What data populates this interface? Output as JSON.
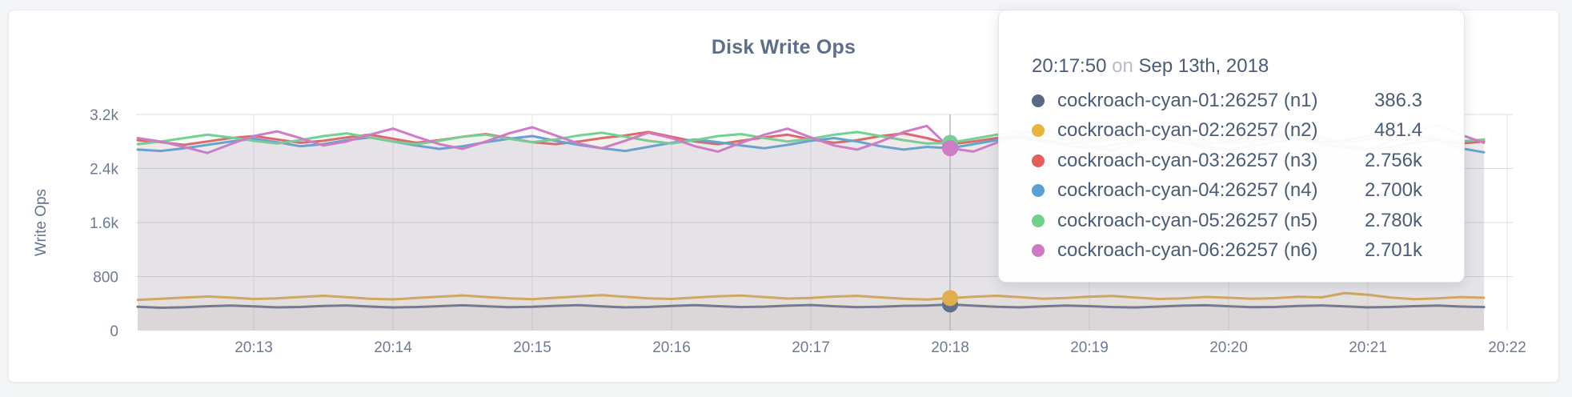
{
  "page": {
    "background": "#f4f5f6"
  },
  "card": {
    "background": "#ffffff",
    "border_color": "#e7e9ec"
  },
  "chart_data": {
    "type": "line",
    "title": "Disk Write Ops",
    "xlabel": "",
    "ylabel": "Write Ops",
    "grid": true,
    "legend_position": "tooltip",
    "y_range": [
      0,
      3200
    ],
    "y_ticks": [
      {
        "value": 0,
        "label": "0"
      },
      {
        "value": 800,
        "label": "800"
      },
      {
        "value": 1600,
        "label": "1.6k"
      },
      {
        "value": 2400,
        "label": "2.4k"
      },
      {
        "value": 3200,
        "label": "3.2k"
      }
    ],
    "x_ticks": [
      "20:13",
      "20:14",
      "20:15",
      "20:16",
      "20:17",
      "20:18",
      "20:19",
      "20:20",
      "20:21",
      "20:22"
    ],
    "time_domain": {
      "start": "20:12:10",
      "end": "20:21:50",
      "step_seconds": 10
    },
    "hover": {
      "index": 35,
      "time": "20:17:50",
      "date": "Sep 13th, 2018"
    },
    "series": [
      {
        "name": "cockroach-cyan-01:26257 (n1)",
        "node": "n1",
        "color": "#60708c",
        "values": [
          352,
          338,
          345,
          360,
          370,
          358,
          344,
          350,
          364,
          372,
          356,
          342,
          348,
          362,
          374,
          360,
          346,
          352,
          366,
          376,
          358,
          344,
          350,
          365,
          377,
          362,
          348,
          354,
          368,
          378,
          360,
          346,
          352,
          366,
          370,
          386.3,
          368,
          352,
          344,
          358,
          370,
          362,
          348,
          342,
          356,
          368,
          374,
          360,
          346,
          350,
          364,
          372,
          358,
          344,
          350,
          362,
          370,
          356,
          348
        ]
      },
      {
        "name": "cockroach-cyan-02:26257 (n2)",
        "node": "n2",
        "color": "#e0ae4f",
        "values": [
          455,
          470,
          490,
          505,
          488,
          468,
          478,
          498,
          515,
          495,
          472,
          462,
          482,
          502,
          520,
          498,
          476,
          466,
          486,
          506,
          524,
          500,
          478,
          468,
          488,
          508,
          518,
          496,
          474,
          484,
          504,
          514,
          492,
          470,
          460,
          481.4,
          500,
          516,
          494,
          472,
          482,
          502,
          512,
          490,
          468,
          478,
          498,
          486,
          470,
          480,
          500,
          492,
          556,
          530,
          488,
          466,
          476,
          496,
          486
        ]
      },
      {
        "name": "cockroach-cyan-03:26257 (n3)",
        "node": "n3",
        "color": "#e06667",
        "values": [
          2820,
          2790,
          2750,
          2800,
          2850,
          2880,
          2830,
          2780,
          2810,
          2860,
          2900,
          2840,
          2780,
          2820,
          2870,
          2910,
          2850,
          2790,
          2760,
          2800,
          2850,
          2890,
          2940,
          2870,
          2800,
          2760,
          2810,
          2860,
          2900,
          2830,
          2780,
          2820,
          2880,
          2920,
          2850,
          2756,
          2800,
          2850,
          2890,
          2820,
          2770,
          2810,
          2870,
          2900,
          2840,
          2780,
          2750,
          2800,
          2860,
          2910,
          2850,
          2790,
          2820,
          2880,
          2960,
          2890,
          2820,
          2770,
          2800
        ]
      },
      {
        "name": "cockroach-cyan-04:26257 (n4)",
        "node": "n4",
        "color": "#64a1d6",
        "values": [
          2680,
          2660,
          2700,
          2750,
          2800,
          2840,
          2790,
          2730,
          2760,
          2820,
          2860,
          2800,
          2740,
          2690,
          2730,
          2790,
          2840,
          2880,
          2810,
          2750,
          2700,
          2660,
          2720,
          2780,
          2830,
          2790,
          2740,
          2700,
          2750,
          2810,
          2850,
          2800,
          2730,
          2680,
          2720,
          2700,
          2760,
          2820,
          2860,
          2800,
          2740,
          2700,
          2750,
          2810,
          2840,
          2780,
          2720,
          2680,
          2730,
          2790,
          2830,
          2770,
          2710,
          2670,
          2720,
          2780,
          2820,
          2700,
          2640
        ]
      },
      {
        "name": "cockroach-cyan-05:26257 (n5)",
        "node": "n5",
        "color": "#75d093",
        "values": [
          2760,
          2800,
          2850,
          2900,
          2860,
          2810,
          2770,
          2820,
          2880,
          2920,
          2860,
          2800,
          2760,
          2810,
          2870,
          2900,
          2840,
          2790,
          2830,
          2890,
          2930,
          2870,
          2810,
          2770,
          2820,
          2880,
          2910,
          2850,
          2800,
          2840,
          2900,
          2940,
          2880,
          2820,
          2770,
          2780,
          2840,
          2900,
          2950,
          2890,
          2830,
          2790,
          2840,
          2890,
          2920,
          2860,
          2800,
          2760,
          2810,
          2870,
          2900,
          2840,
          2790,
          2830,
          2880,
          2910,
          2850,
          2800,
          2830
        ]
      },
      {
        "name": "cockroach-cyan-06:26257 (n6)",
        "node": "n6",
        "color": "#cd7dc5",
        "values": [
          2850,
          2800,
          2720,
          2630,
          2760,
          2880,
          2950,
          2850,
          2740,
          2800,
          2900,
          2990,
          2870,
          2760,
          2690,
          2800,
          2920,
          3010,
          2890,
          2770,
          2700,
          2810,
          2930,
          2850,
          2730,
          2650,
          2780,
          2900,
          2990,
          2860,
          2740,
          2680,
          2800,
          2940,
          3030,
          2701,
          2650,
          2780,
          2910,
          2990,
          2860,
          2730,
          2660,
          2790,
          2920,
          2850,
          2720,
          2640,
          2770,
          2900,
          3000,
          2880,
          2750,
          2680,
          2810,
          2950,
          3040,
          2900,
          2780
        ]
      }
    ]
  },
  "tooltip": {
    "time": "20:17:50",
    "connector": "on",
    "date": "Sep 13th, 2018",
    "rows": [
      {
        "label": "cockroach-cyan-01:26257 (n1)",
        "value": "386.3",
        "color": "#5a6785"
      },
      {
        "label": "cockroach-cyan-02:26257 (n2)",
        "value": "481.4",
        "color": "#e9b43e"
      },
      {
        "label": "cockroach-cyan-03:26257 (n3)",
        "value": "2.756k",
        "color": "#e55e5c"
      },
      {
        "label": "cockroach-cyan-04:26257 (n4)",
        "value": "2.700k",
        "color": "#58a0d6"
      },
      {
        "label": "cockroach-cyan-05:26257 (n5)",
        "value": "2.780k",
        "color": "#6fd18c"
      },
      {
        "label": "cockroach-cyan-06:26257 (n6)",
        "value": "2.701k",
        "color": "#cd7ac4"
      }
    ]
  }
}
